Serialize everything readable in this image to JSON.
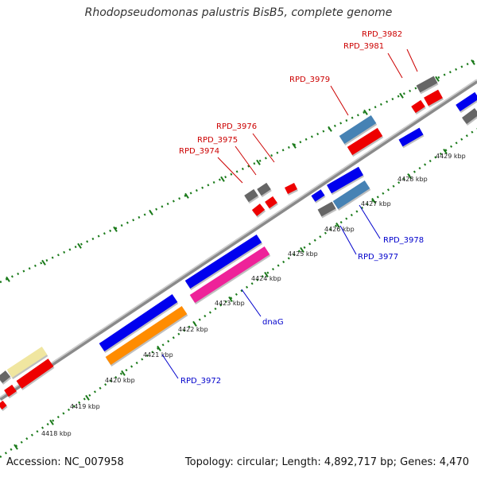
{
  "title": "Rhodopseudomonas palustris BisB5, complete genome",
  "footer": {
    "accession": "Accession: NC_007958",
    "topology": "Topology: circular; Length: 4,892,717 bp; Genes: 4,470"
  },
  "colors": {
    "forward_label": "#cc0000",
    "reverse_label": "#0000cc",
    "backbone": "#8a8a8a",
    "ticks": "#1a7a1a"
  },
  "ticks": [
    "4418 kbp",
    "4419 kbp",
    "4420 kbp",
    "4421 kbp",
    "4422 kbp",
    "4423 kbp",
    "4424 kbp",
    "4425 kbp",
    "4426 kbp",
    "4427 kbp",
    "4428 kbp",
    "4429 kbp"
  ],
  "genes": [
    {
      "label": "RPD_3982",
      "strand": "forward"
    },
    {
      "label": "RPD_3981",
      "strand": "forward"
    },
    {
      "label": "RPD_3979",
      "strand": "forward"
    },
    {
      "label": "RPD_3976",
      "strand": "forward"
    },
    {
      "label": "RPD_3975",
      "strand": "forward"
    },
    {
      "label": "RPD_3974",
      "strand": "forward"
    },
    {
      "label": "RPD_3978",
      "strand": "reverse"
    },
    {
      "label": "RPD_3977",
      "strand": "reverse"
    },
    {
      "label": "dnaG",
      "strand": "reverse"
    },
    {
      "label": "RPD_3972",
      "strand": "reverse"
    }
  ]
}
